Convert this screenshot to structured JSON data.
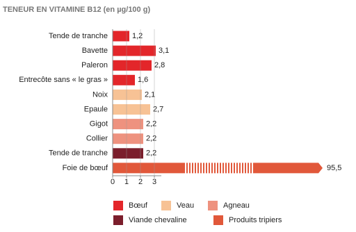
{
  "chart_data": {
    "type": "bar",
    "orientation": "horizontal",
    "title": "TENEUR EN VITAMINE B12 (en µg/100 g)",
    "categories": [
      "Tende de tranche",
      "Bavette",
      "Paleron",
      "Entrecôte sans « le gras »",
      "Noix",
      "Epaule",
      "Gigot",
      "Collier",
      "Tende de tranche",
      "Foie de bœuf"
    ],
    "values": [
      1.2,
      3.1,
      2.8,
      1.6,
      2.1,
      2.7,
      2.2,
      2.2,
      2.2,
      95.5
    ],
    "value_labels": [
      "1,2",
      "3,1",
      "2,8",
      "1,6",
      "2,1",
      "2,7",
      "2,2",
      "2,2",
      "2,2",
      "95,5"
    ],
    "bar_groups": [
      0,
      0,
      0,
      0,
      1,
      1,
      2,
      2,
      3,
      4
    ],
    "legend": [
      {
        "name": "Bœuf",
        "color": "#e3262a"
      },
      {
        "name": "Veau",
        "color": "#f7c295"
      },
      {
        "name": "Agneau",
        "color": "#ee927f"
      },
      {
        "name": "Viande chevaline",
        "color": "#7b1e2c"
      },
      {
        "name": "Produits tripiers",
        "color": "#e1583a"
      }
    ],
    "xlim": [
      0,
      3
    ],
    "xticks": [
      0,
      1,
      2,
      3
    ],
    "grid": true,
    "broken_axis": true
  }
}
